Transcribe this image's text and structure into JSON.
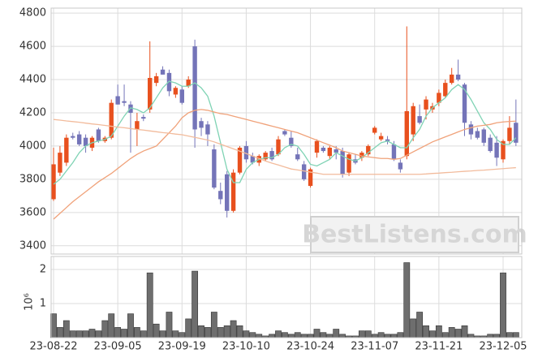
{
  "chart_data": [
    {
      "type": "candlestick",
      "watermark": "BestListens.com",
      "up_color": "#e8501e",
      "down_color": "#7474b8",
      "open": [
        3680,
        3840,
        3900,
        4060,
        4070,
        4050,
        3990,
        4100,
        4030,
        4050,
        4300,
        4270,
        4250,
        4100,
        4175,
        4220,
        4380,
        4460,
        4440,
        4310,
        4340,
        4360,
        4600,
        4150,
        4130,
        3980,
        3730,
        3830,
        3610,
        3840,
        4000,
        3940,
        3900,
        3920,
        3970,
        3950,
        4090,
        4050,
        3950,
        3890,
        3760,
        3960,
        3990,
        3940,
        3980,
        3970,
        3840,
        3920,
        3930,
        3950,
        4080,
        4040,
        4040,
        4010,
        3900,
        3940,
        4070,
        4180,
        4220,
        4220,
        4260,
        4300,
        4380,
        4430,
        4370,
        4130,
        4090,
        4100,
        4050,
        4020,
        3920,
        4030,
        4140
      ],
      "high": [
        3990,
        4000,
        4070,
        4080,
        4090,
        4070,
        4060,
        4110,
        4060,
        4280,
        4370,
        4370,
        4270,
        4200,
        4190,
        4630,
        4440,
        4480,
        4460,
        4360,
        4360,
        4420,
        4640,
        4170,
        4150,
        4010,
        3780,
        3850,
        3860,
        4000,
        4030,
        3960,
        3950,
        3970,
        3990,
        4060,
        4100,
        4090,
        3990,
        3910,
        3870,
        4040,
        4000,
        4000,
        4000,
        3990,
        3960,
        3950,
        3970,
        4010,
        4120,
        4080,
        4060,
        4030,
        3920,
        4720,
        4260,
        4250,
        4300,
        4260,
        4340,
        4400,
        4470,
        4520,
        4380,
        4150,
        4110,
        4110,
        4070,
        4060,
        4040,
        4180,
        4280
      ],
      "low": [
        3670,
        3820,
        3880,
        4040,
        4000,
        3960,
        3970,
        4020,
        4020,
        4040,
        4250,
        4240,
        3960,
        4000,
        4150,
        4200,
        4360,
        4430,
        4300,
        4290,
        4250,
        4350,
        3990,
        4060,
        4000,
        3740,
        3650,
        3570,
        3600,
        3830,
        3900,
        3890,
        3880,
        3910,
        3910,
        3940,
        4060,
        3990,
        3910,
        3790,
        3750,
        3930,
        3960,
        3920,
        3920,
        3810,
        3820,
        3890,
        3910,
        3940,
        4070,
        4030,
        4010,
        3910,
        3840,
        3920,
        4030,
        4130,
        4160,
        4200,
        4240,
        4290,
        4370,
        4390,
        4060,
        4040,
        4040,
        4000,
        3960,
        3880,
        3900,
        4010,
        4000
      ],
      "close": [
        3890,
        3960,
        4050,
        4050,
        4010,
        4000,
        4050,
        4030,
        4050,
        4260,
        4250,
        4260,
        4200,
        4150,
        4165,
        4410,
        4420,
        4430,
        4330,
        4350,
        4260,
        4400,
        4100,
        4110,
        4070,
        3750,
        3680,
        3610,
        3840,
        3990,
        3920,
        3900,
        3940,
        3960,
        3920,
        4040,
        4070,
        4000,
        3920,
        3800,
        3860,
        4030,
        3970,
        3990,
        3960,
        3830,
        3950,
        3900,
        3960,
        4000,
        4110,
        4060,
        4030,
        3920,
        3860,
        4210,
        4240,
        4140,
        4280,
        4240,
        4320,
        4380,
        4430,
        4400,
        4140,
        4070,
        4050,
        4020,
        3970,
        3930,
        4030,
        4110,
        4020
      ],
      "series": [
        {
          "color": "#7fd3b4",
          "values": [
            3770,
            3800,
            3850,
            3900,
            3960,
            4000,
            4020,
            4030,
            4040,
            4060,
            4120,
            4180,
            4230,
            4220,
            4200,
            4230,
            4290,
            4350,
            4390,
            4380,
            4360,
            4360,
            4380,
            4350,
            4300,
            4180,
            4020,
            3860,
            3780,
            3780,
            3860,
            3900,
            3920,
            3930,
            3930,
            3950,
            3990,
            4010,
            4000,
            3950,
            3890,
            3880,
            3900,
            3920,
            3960,
            3940,
            3920,
            3910,
            3930,
            3960,
            3990,
            4020,
            4030,
            4010,
            3990,
            3990,
            4050,
            4100,
            4180,
            4230,
            4260,
            4290,
            4340,
            4370,
            4340,
            4280,
            4210,
            4140,
            4100,
            4040,
            4010,
            4010,
            4050
          ]
        },
        {
          "color": "#f0a27a",
          "values": [
            3560,
            3595,
            3630,
            3665,
            3695,
            3725,
            3755,
            3785,
            3810,
            3835,
            3865,
            3895,
            3925,
            3950,
            3970,
            3985,
            4000,
            4040,
            4080,
            4120,
            4170,
            4200,
            4215,
            4220,
            4215,
            4205,
            4195,
            4190,
            4180,
            4170,
            4160,
            4150,
            4140,
            4130,
            4120,
            4110,
            4100,
            4090,
            4080,
            4065,
            4050,
            4035,
            4020,
            4005,
            3990,
            3970,
            3960,
            3950,
            3940,
            3935,
            3930,
            3925,
            3925,
            3920,
            3925,
            3945,
            3965,
            3985,
            4005,
            4025,
            4040,
            4055,
            4070,
            4085,
            4100,
            4110,
            4120,
            4125,
            4130,
            4140,
            4145,
            4148,
            4150
          ]
        },
        {
          "color": "#f2bb9c",
          "values": [
            4160,
            4156,
            4151,
            4147,
            4143,
            4138,
            4133,
            4129,
            4124,
            4119,
            4114,
            4110,
            4105,
            4100,
            4096,
            4091,
            4086,
            4081,
            4077,
            4072,
            4068,
            4060,
            4052,
            4044,
            4036,
            4025,
            4011,
            3997,
            3983,
            3969,
            3955,
            3940,
            3925,
            3910,
            3897,
            3886,
            3874,
            3862,
            3856,
            3850,
            3843,
            3837,
            3830,
            3830,
            3830,
            3830,
            3830,
            3830,
            3830,
            3830,
            3830,
            3830,
            3830,
            3830,
            3830,
            3830,
            3830,
            3830,
            3832,
            3835,
            3837,
            3840,
            3842,
            3845,
            3848,
            3850,
            3853,
            3855,
            3858,
            3861,
            3864,
            3867,
            3870
          ]
        }
      ],
      "ylim": [
        3350,
        4830
      ],
      "yticks": [
        3400,
        3600,
        3800,
        4000,
        4200,
        4400,
        4600,
        4800
      ],
      "grid": true
    },
    {
      "type": "bar",
      "categories": [
        "23-08-22",
        null,
        null,
        null,
        null,
        null,
        null,
        null,
        null,
        null,
        "23-09-05",
        null,
        null,
        null,
        null,
        null,
        null,
        null,
        null,
        null,
        "23-09-19",
        null,
        null,
        null,
        null,
        null,
        null,
        null,
        null,
        null,
        "23-10-10",
        null,
        null,
        null,
        null,
        null,
        null,
        null,
        null,
        null,
        "23-10-24",
        null,
        null,
        null,
        null,
        null,
        null,
        null,
        null,
        null,
        "23-11-07",
        null,
        null,
        null,
        null,
        null,
        null,
        null,
        null,
        null,
        "23-11-21",
        null,
        null,
        null,
        null,
        null,
        null,
        null,
        null,
        null,
        "23-12-05",
        null,
        null
      ],
      "values": [
        0.7,
        0.3,
        0.5,
        0.2,
        0.2,
        0.2,
        0.25,
        0.2,
        0.5,
        0.7,
        0.3,
        0.25,
        0.7,
        0.3,
        0.2,
        1.9,
        0.4,
        0.2,
        0.75,
        0.2,
        0.15,
        0.55,
        1.95,
        0.35,
        0.3,
        0.75,
        0.3,
        0.35,
        0.5,
        0.35,
        0.2,
        0.15,
        0.1,
        0.05,
        0.1,
        0.2,
        0.15,
        0.1,
        0.15,
        0.1,
        0.1,
        0.25,
        0.15,
        0.1,
        0.25,
        0.1,
        0.05,
        0.05,
        0.2,
        0.2,
        0.1,
        0.15,
        0.1,
        0.1,
        0.15,
        2.2,
        0.55,
        0.75,
        0.35,
        0.2,
        0.35,
        0.15,
        0.3,
        0.25,
        0.35,
        0.1,
        0.05,
        0.05,
        0.1,
        0.1,
        1.9,
        0.15,
        0.15
      ],
      "color": "#6e6e6e",
      "offset_label": "10⁶",
      "ylim": [
        0,
        2.38
      ],
      "yticks": [
        1,
        2
      ],
      "grid": true
    }
  ]
}
